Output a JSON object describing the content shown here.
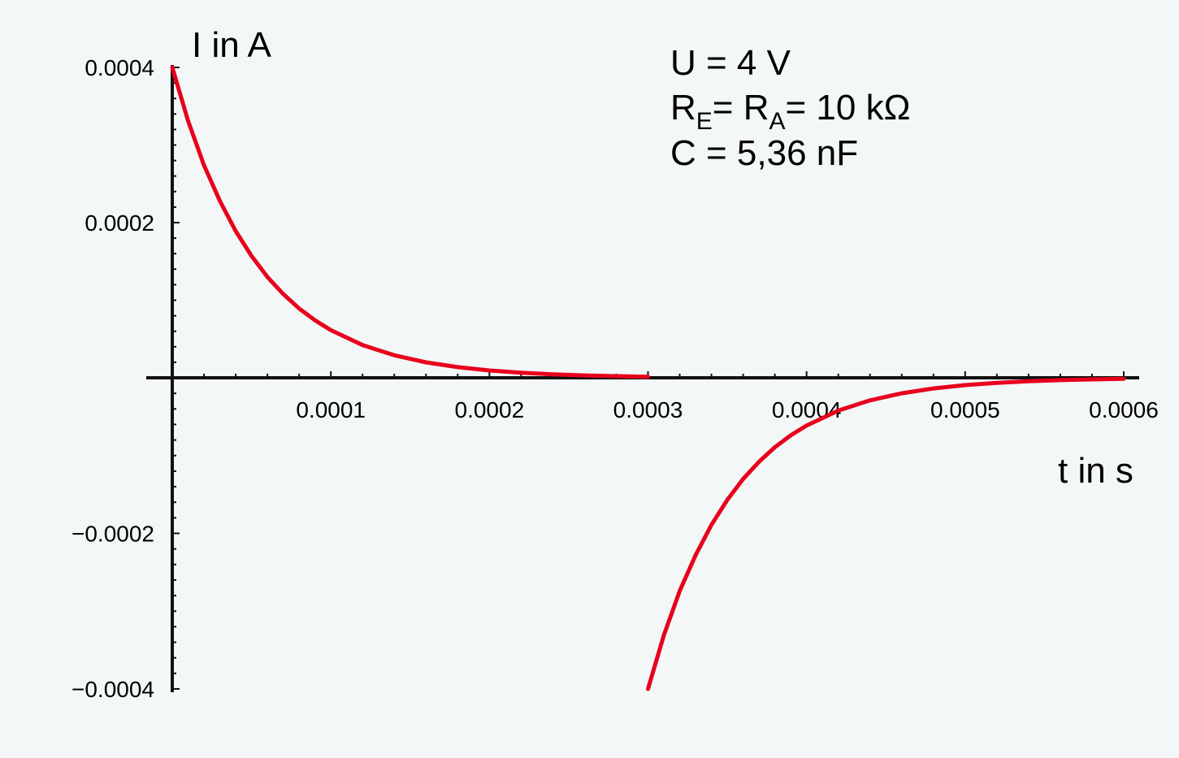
{
  "chart_data": {
    "type": "line",
    "title": "",
    "xlabel": "t in s",
    "ylabel": "I in A",
    "xlim": [
      0,
      0.0006
    ],
    "ylim": [
      -0.0004,
      0.0004
    ],
    "xticks": [
      "0.0001",
      "0.0002",
      "0.0003",
      "0.0004",
      "0.0005",
      "0.0006"
    ],
    "yticks": [
      "0.0004",
      "0.0002",
      "−0.0002",
      "−0.0004"
    ],
    "grid": false,
    "parameters": {
      "voltage": "U = 4 V",
      "resistance_prefix": "R",
      "resistance_sub_e": "E",
      "resistance_mid": "= R",
      "resistance_sub_a": "A",
      "resistance_suffix": "= 10 kΩ",
      "capacitance": "C = 5,36 nF"
    },
    "series": [
      {
        "color": "#e8001c",
        "segments": [
          {
            "phase": "charging",
            "x": [
              0,
              1e-05,
              2e-05,
              3e-05,
              4e-05,
              5e-05,
              6e-05,
              7e-05,
              8e-05,
              9e-05,
              0.0001,
              0.00012,
              0.00014,
              0.00016,
              0.00018,
              0.0002,
              0.00022,
              0.00024,
              0.00026,
              0.00028,
              0.0003
            ],
            "y": [
              0.0004,
              0.000331,
              0.000274,
              0.000228,
              0.000189,
              0.000157,
              0.00013,
              0.000108,
              8.93e-05,
              7.4e-05,
              6.14e-05,
              4.22e-05,
              2.9e-05,
              1.99e-05,
              1.37e-05,
              9.4e-06,
              6.5e-06,
              4.4e-06,
              3e-06,
              2.1e-06,
              1.4e-06
            ]
          },
          {
            "phase": "discharging",
            "x": [
              0.0003,
              0.00031,
              0.00032,
              0.00033,
              0.00034,
              0.00035,
              0.00036,
              0.00037,
              0.00038,
              0.00039,
              0.0004,
              0.00042,
              0.00044,
              0.00046,
              0.00048,
              0.0005,
              0.00052,
              0.00054,
              0.00056,
              0.00058,
              0.0006
            ],
            "y": [
              -0.0004,
              -0.000331,
              -0.000274,
              -0.000228,
              -0.000189,
              -0.000157,
              -0.00013,
              -0.000108,
              -8.93e-05,
              -7.4e-05,
              -6.14e-05,
              -4.22e-05,
              -2.9e-05,
              -1.99e-05,
              -1.37e-05,
              -9.4e-06,
              -6.5e-06,
              -4.4e-06,
              -3e-06,
              -2.1e-06,
              -1.4e-06
            ]
          }
        ]
      }
    ]
  }
}
